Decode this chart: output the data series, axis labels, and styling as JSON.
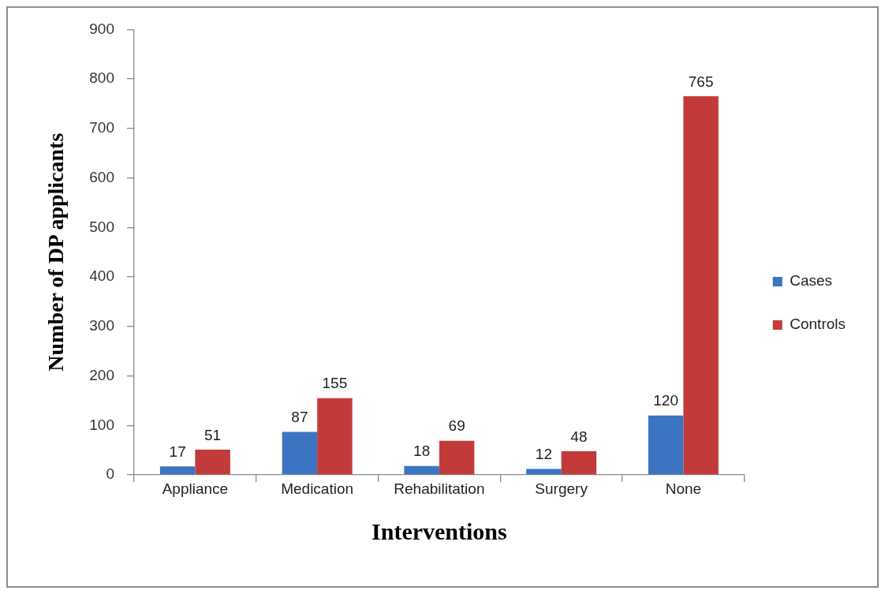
{
  "chart_data": {
    "type": "bar",
    "xlabel": "Interventions",
    "ylabel": "Number of DP applicants",
    "categories": [
      "Appliance",
      "Medication",
      "Rehabilitation",
      "Surgery",
      "None"
    ],
    "series": [
      {
        "name": "Cases",
        "color": "#3b74c0",
        "values": [
          17,
          87,
          18,
          12,
          120
        ]
      },
      {
        "name": "Controls",
        "color": "#c23b3a",
        "values": [
          51,
          155,
          69,
          48,
          765
        ]
      }
    ],
    "ylim": [
      0,
      900
    ],
    "yticks": [
      0,
      100,
      200,
      300,
      400,
      500,
      600,
      700,
      800,
      900
    ],
    "legend": "right",
    "data_labels": true
  }
}
